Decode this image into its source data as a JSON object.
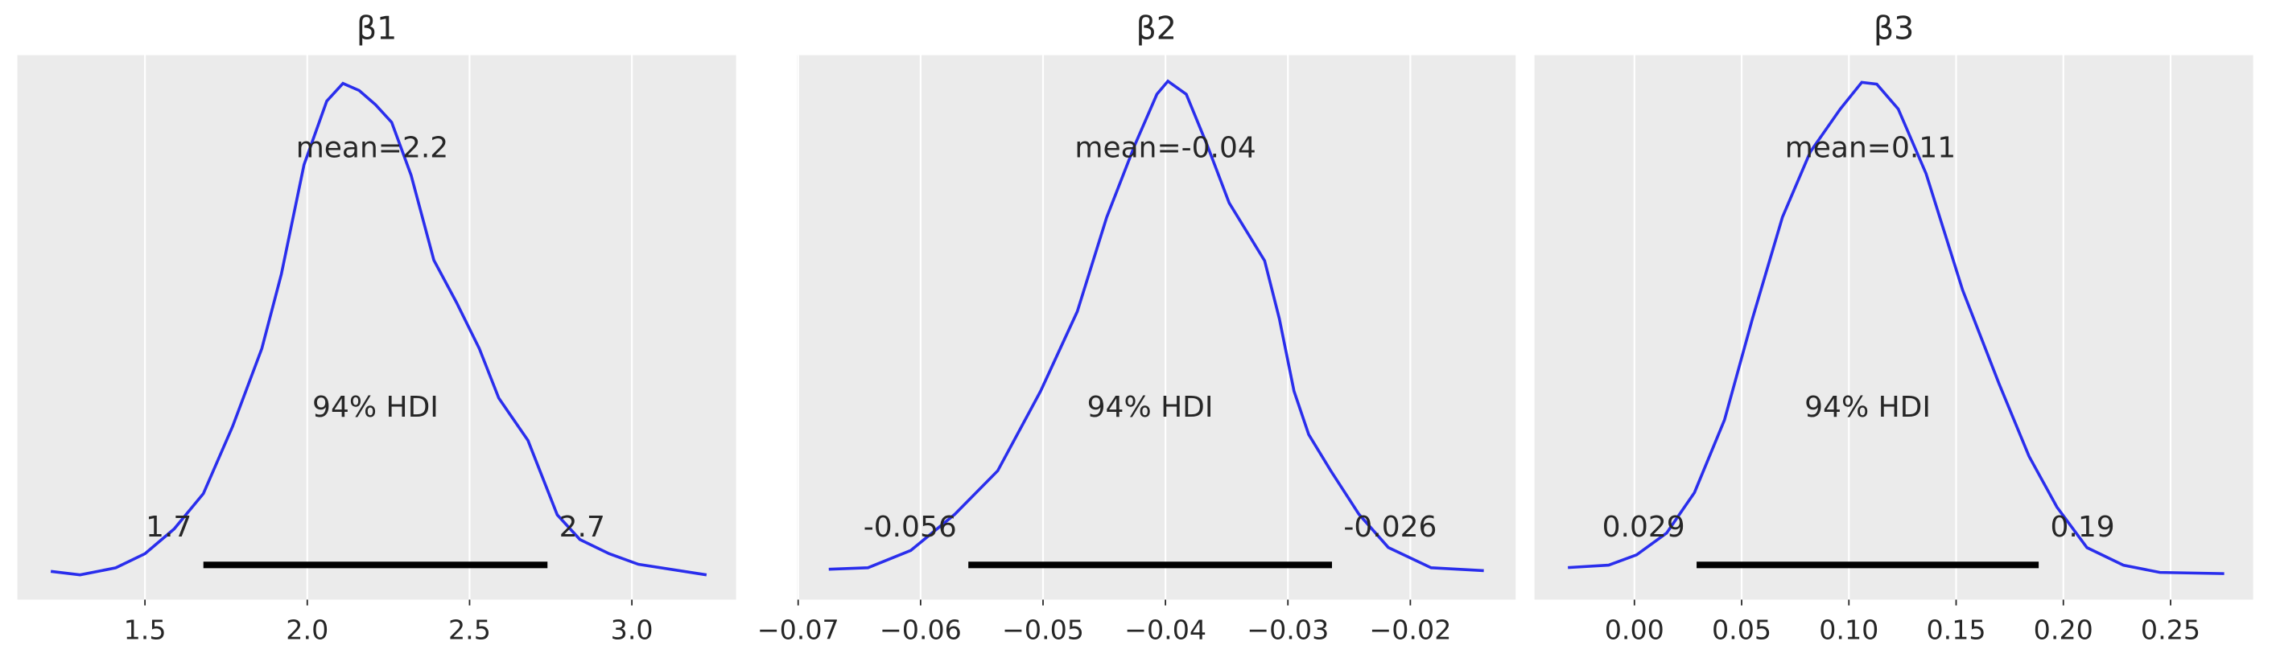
{
  "chart_data": [
    {
      "type": "density",
      "title": "β1",
      "color": "#2a2eec",
      "x": [
        1.21,
        1.3,
        1.41,
        1.5,
        1.59,
        1.68,
        1.77,
        1.86,
        1.92,
        1.99,
        2.06,
        2.11,
        2.16,
        2.21,
        2.26,
        2.32,
        2.39,
        2.46,
        2.53,
        2.59,
        2.68,
        2.77,
        2.84,
        2.93,
        3.02,
        3.23
      ],
      "values": [
        0.01,
        0.0,
        0.02,
        0.06,
        0.13,
        0.23,
        0.42,
        0.64,
        0.85,
        1.16,
        1.34,
        1.39,
        1.37,
        1.33,
        1.28,
        1.13,
        0.89,
        0.77,
        0.64,
        0.5,
        0.38,
        0.17,
        0.1,
        0.06,
        0.03,
        0.0
      ],
      "xlim": [
        1.107,
        3.321
      ],
      "ylim": [
        -0.07,
        1.47
      ],
      "xticks": [
        {
          "value": 1.5,
          "label": "1.5"
        },
        {
          "value": 2,
          "label": "2.0"
        },
        {
          "value": 2.5,
          "label": "2.5"
        },
        {
          "value": 3,
          "label": "3.0"
        }
      ],
      "grid": true,
      "mean": 2.2,
      "mean_label": "mean=2.2",
      "hdi_label": "94% HDI",
      "hdi": [
        1.68,
        2.74
      ],
      "hdi_labels": [
        "1.7",
        "2.7"
      ]
    },
    {
      "type": "density",
      "title": "β2",
      "color": "#2a2eec",
      "x": [
        -0.0675,
        -0.0643,
        -0.0608,
        -0.0572,
        -0.0537,
        -0.0502,
        -0.0472,
        -0.0448,
        -0.0425,
        -0.0407,
        -0.0398,
        -0.0383,
        -0.0366,
        -0.0348,
        -0.0319,
        -0.0307,
        -0.0295,
        -0.0283,
        -0.0265,
        -0.0242,
        -0.0218,
        -0.0183,
        -0.014
      ],
      "values": [
        0.57,
        0.72,
        2.47,
        6.13,
        10.52,
        18.56,
        26.61,
        36.12,
        43.43,
        48.55,
        49.87,
        48.55,
        43.43,
        37.58,
        31.73,
        25.88,
        18.56,
        14.18,
        10.52,
        6.13,
        2.77,
        0.72,
        0.43
      ],
      "xlim": [
        -0.0701,
        -0.0114
      ],
      "ylim": [
        -2.5,
        52.5
      ],
      "xticks": [
        {
          "value": -0.07,
          "label": "−0.07"
        },
        {
          "value": -0.06,
          "label": "−0.06"
        },
        {
          "value": -0.05,
          "label": "−0.05"
        },
        {
          "value": -0.04,
          "label": "−0.04"
        },
        {
          "value": -0.03,
          "label": "−0.03"
        },
        {
          "value": -0.02,
          "label": "−0.02"
        }
      ],
      "grid": true,
      "mean": -0.04,
      "mean_label": "mean=-0.04",
      "hdi_label": "94% HDI",
      "hdi": [
        -0.0561,
        -0.0264
      ],
      "hdi_labels": [
        "-0.056",
        "-0.026"
      ]
    },
    {
      "type": "density",
      "title": "β3",
      "color": "#2a2eec",
      "x": [
        -0.031,
        -0.012,
        0.001,
        0.015,
        0.028,
        0.042,
        0.055,
        0.069,
        0.082,
        0.096,
        0.106,
        0.113,
        0.123,
        0.136,
        0.153,
        0.17,
        0.184,
        0.197,
        0.211,
        0.228,
        0.245,
        0.275
      ],
      "values": [
        0.13,
        0.17,
        0.34,
        0.7,
        1.37,
        2.57,
        4.24,
        5.92,
        7.0,
        7.71,
        8.15,
        8.12,
        7.71,
        6.64,
        4.72,
        3.17,
        1.97,
        1.13,
        0.46,
        0.17,
        0.05,
        0.03
      ],
      "xlim": [
        -0.0466,
        0.2885
      ],
      "ylim": [
        -0.4,
        8.6
      ],
      "xticks": [
        {
          "value": 0,
          "label": "0.00"
        },
        {
          "value": 0.05,
          "label": "0.05"
        },
        {
          "value": 0.1,
          "label": "0.10"
        },
        {
          "value": 0.15,
          "label": "0.15"
        },
        {
          "value": 0.2,
          "label": "0.20"
        },
        {
          "value": 0.25,
          "label": "0.25"
        }
      ],
      "grid": true,
      "mean": 0.11,
      "mean_label": "mean=0.11",
      "hdi_label": "94% HDI",
      "hdi": [
        0.029,
        0.1885
      ],
      "hdi_labels": [
        "0.029",
        "0.19"
      ]
    }
  ]
}
